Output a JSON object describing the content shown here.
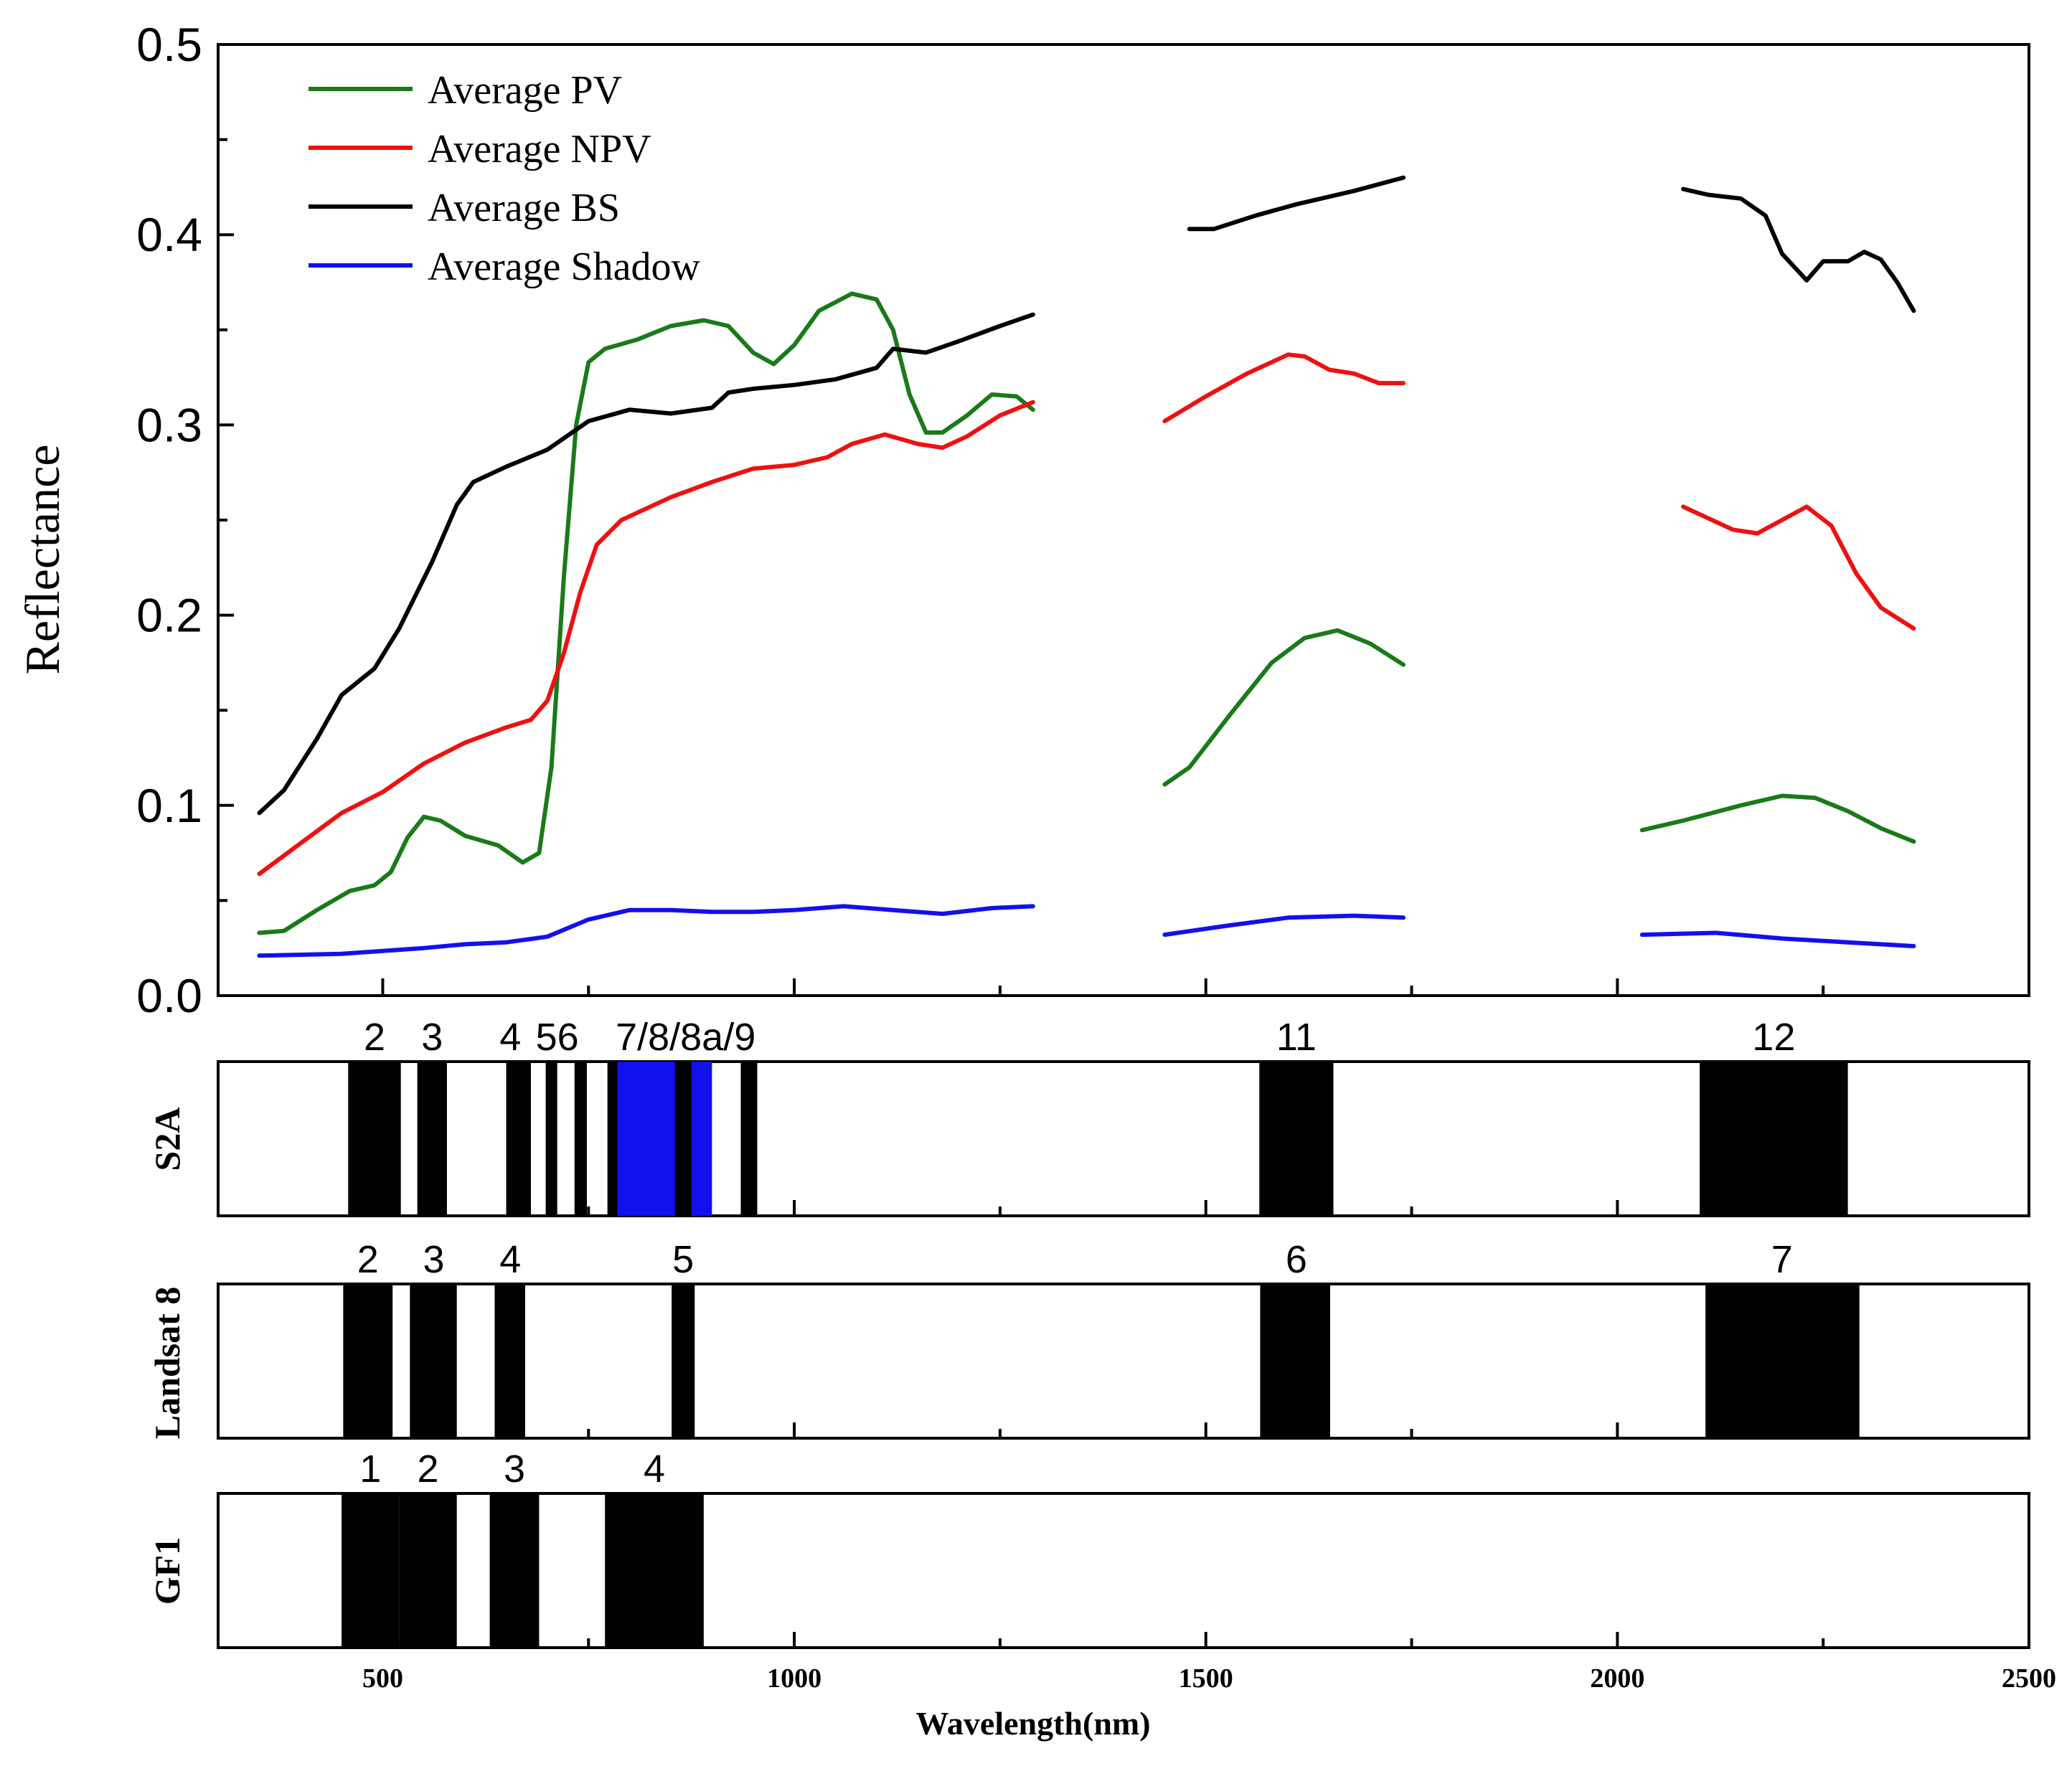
{
  "chart_data": {
    "type": "line",
    "title": "",
    "ylabel": "Reflectance",
    "xlabel": "Wavelength(nm)",
    "ylim": [
      0.0,
      0.5
    ],
    "xlim": [
      300,
      2500
    ],
    "yticks": [
      "0.0",
      "0.1",
      "0.2",
      "0.3",
      "0.4",
      "0.5"
    ],
    "xticks": [
      "500",
      "1000",
      "1500",
      "2000",
      "2500"
    ],
    "legend_position": "top-left",
    "series": [
      {
        "name": "Average PV",
        "color": "#1a7a1a",
        "segments": [
          [
            [
              350,
              0.033
            ],
            [
              380,
              0.034
            ],
            [
              420,
              0.045
            ],
            [
              460,
              0.055
            ],
            [
              490,
              0.058
            ],
            [
              510,
              0.065
            ],
            [
              530,
              0.083
            ],
            [
              550,
              0.094
            ],
            [
              570,
              0.092
            ],
            [
              600,
              0.084
            ],
            [
              640,
              0.079
            ],
            [
              670,
              0.07
            ],
            [
              690,
              0.075
            ],
            [
              705,
              0.12
            ],
            [
              720,
              0.22
            ],
            [
              735,
              0.3
            ],
            [
              750,
              0.333
            ],
            [
              770,
              0.34
            ],
            [
              810,
              0.345
            ],
            [
              850,
              0.352
            ],
            [
              890,
              0.355
            ],
            [
              920,
              0.352
            ],
            [
              950,
              0.338
            ],
            [
              975,
              0.332
            ],
            [
              1000,
              0.342
            ],
            [
              1030,
              0.36
            ],
            [
              1070,
              0.369
            ],
            [
              1100,
              0.366
            ],
            [
              1120,
              0.35
            ],
            [
              1140,
              0.316
            ],
            [
              1160,
              0.296
            ],
            [
              1180,
              0.296
            ],
            [
              1210,
              0.305
            ],
            [
              1240,
              0.316
            ],
            [
              1270,
              0.315
            ],
            [
              1290,
              0.308
            ]
          ],
          [
            [
              1450,
              0.111
            ],
            [
              1480,
              0.12
            ],
            [
              1530,
              0.148
            ],
            [
              1580,
              0.175
            ],
            [
              1620,
              0.188
            ],
            [
              1660,
              0.192
            ],
            [
              1700,
              0.185
            ],
            [
              1740,
              0.174
            ]
          ],
          [
            [
              2030,
              0.087
            ],
            [
              2080,
              0.092
            ],
            [
              2150,
              0.1
            ],
            [
              2200,
              0.105
            ],
            [
              2240,
              0.104
            ],
            [
              2280,
              0.097
            ],
            [
              2320,
              0.088
            ],
            [
              2360,
              0.081
            ]
          ]
        ]
      },
      {
        "name": "Average NPV",
        "color": "#ee1111",
        "segments": [
          [
            [
              350,
              0.064
            ],
            [
              400,
              0.08
            ],
            [
              450,
              0.096
            ],
            [
              500,
              0.107
            ],
            [
              550,
              0.122
            ],
            [
              600,
              0.133
            ],
            [
              650,
              0.141
            ],
            [
              680,
              0.145
            ],
            [
              700,
              0.155
            ],
            [
              720,
              0.18
            ],
            [
              740,
              0.212
            ],
            [
              760,
              0.237
            ],
            [
              790,
              0.25
            ],
            [
              850,
              0.262
            ],
            [
              900,
              0.27
            ],
            [
              950,
              0.277
            ],
            [
              1000,
              0.279
            ],
            [
              1040,
              0.283
            ],
            [
              1070,
              0.29
            ],
            [
              1110,
              0.295
            ],
            [
              1150,
              0.29
            ],
            [
              1180,
              0.288
            ],
            [
              1210,
              0.294
            ],
            [
              1250,
              0.305
            ],
            [
              1290,
              0.312
            ]
          ],
          [
            [
              1450,
              0.302
            ],
            [
              1500,
              0.315
            ],
            [
              1550,
              0.327
            ],
            [
              1600,
              0.337
            ],
            [
              1620,
              0.336
            ],
            [
              1650,
              0.329
            ],
            [
              1680,
              0.327
            ],
            [
              1710,
              0.322
            ],
            [
              1740,
              0.322
            ]
          ],
          [
            [
              2080,
              0.257
            ],
            [
              2110,
              0.251
            ],
            [
              2140,
              0.245
            ],
            [
              2170,
              0.243
            ],
            [
              2200,
              0.25
            ],
            [
              2230,
              0.257
            ],
            [
              2260,
              0.247
            ],
            [
              2290,
              0.222
            ],
            [
              2320,
              0.204
            ],
            [
              2360,
              0.193
            ]
          ]
        ]
      },
      {
        "name": "Average BS",
        "color": "#000000",
        "segments": [
          [
            [
              350,
              0.096
            ],
            [
              380,
              0.108
            ],
            [
              420,
              0.135
            ],
            [
              450,
              0.158
            ],
            [
              490,
              0.172
            ],
            [
              520,
              0.193
            ],
            [
              560,
              0.228
            ],
            [
              590,
              0.258
            ],
            [
              610,
              0.27
            ],
            [
              650,
              0.278
            ],
            [
              700,
              0.287
            ],
            [
              750,
              0.302
            ],
            [
              800,
              0.308
            ],
            [
              850,
              0.306
            ],
            [
              900,
              0.309
            ],
            [
              920,
              0.317
            ],
            [
              950,
              0.319
            ],
            [
              1000,
              0.321
            ],
            [
              1050,
              0.324
            ],
            [
              1100,
              0.33
            ],
            [
              1120,
              0.34
            ],
            [
              1160,
              0.338
            ],
            [
              1200,
              0.344
            ],
            [
              1250,
              0.352
            ],
            [
              1290,
              0.358
            ]
          ],
          [
            [
              1480,
              0.403
            ],
            [
              1510,
              0.403
            ],
            [
              1560,
              0.41
            ],
            [
              1610,
              0.416
            ],
            [
              1680,
              0.423
            ],
            [
              1740,
              0.43
            ]
          ],
          [
            [
              2080,
              0.424
            ],
            [
              2110,
              0.421
            ],
            [
              2150,
              0.419
            ],
            [
              2180,
              0.41
            ],
            [
              2200,
              0.39
            ],
            [
              2230,
              0.376
            ],
            [
              2250,
              0.386
            ],
            [
              2280,
              0.386
            ],
            [
              2300,
              0.391
            ],
            [
              2320,
              0.387
            ],
            [
              2340,
              0.375
            ],
            [
              2360,
              0.36
            ]
          ]
        ]
      },
      {
        "name": "Average Shadow",
        "color": "#1111ee",
        "segments": [
          [
            [
              350,
              0.021
            ],
            [
              450,
              0.022
            ],
            [
              550,
              0.025
            ],
            [
              600,
              0.027
            ],
            [
              650,
              0.028
            ],
            [
              700,
              0.031
            ],
            [
              750,
              0.04
            ],
            [
              800,
              0.045
            ],
            [
              850,
              0.045
            ],
            [
              900,
              0.044
            ],
            [
              950,
              0.044
            ],
            [
              1000,
              0.045
            ],
            [
              1060,
              0.047
            ],
            [
              1120,
              0.045
            ],
            [
              1180,
              0.043
            ],
            [
              1240,
              0.046
            ],
            [
              1290,
              0.047
            ]
          ],
          [
            [
              1450,
              0.032
            ],
            [
              1530,
              0.037
            ],
            [
              1600,
              0.041
            ],
            [
              1680,
              0.042
            ],
            [
              1740,
              0.041
            ]
          ],
          [
            [
              2030,
              0.032
            ],
            [
              2120,
              0.033
            ],
            [
              2200,
              0.03
            ],
            [
              2280,
              0.028
            ],
            [
              2360,
              0.026
            ]
          ]
        ]
      }
    ],
    "sensors": [
      {
        "name": "S2A",
        "bands": [
          {
            "min": 458,
            "max": 522,
            "color": "#000000"
          },
          {
            "min": 542,
            "max": 578,
            "color": "#000000"
          },
          {
            "min": 650,
            "max": 680,
            "color": "#000000"
          },
          {
            "min": 698,
            "max": 712,
            "color": "#000000"
          },
          {
            "min": 733,
            "max": 748,
            "color": "#000000"
          },
          {
            "min": 773,
            "max": 793,
            "color": "#000000"
          },
          {
            "min": 785,
            "max": 900,
            "color": "#1111ee"
          },
          {
            "min": 855,
            "max": 875,
            "color": "#000000"
          },
          {
            "min": 935,
            "max": 955,
            "color": "#000000"
          },
          {
            "min": 1565,
            "max": 1655,
            "color": "#000000"
          },
          {
            "min": 2100,
            "max": 2280,
            "color": "#000000"
          }
        ],
        "labels": [
          {
            "text": "2",
            "at": 490
          },
          {
            "text": "3",
            "at": 560
          },
          {
            "text": "4",
            "at": 655
          },
          {
            "text": "56",
            "at": 712
          },
          {
            "text": "7/8/8a/9",
            "at": 868
          },
          {
            "text": "11",
            "at": 1610
          },
          {
            "text": "12",
            "at": 2190
          }
        ]
      },
      {
        "name": "Landsat 8",
        "bands": [
          {
            "min": 452,
            "max": 512,
            "color": "#000000"
          },
          {
            "min": 533,
            "max": 590,
            "color": "#000000"
          },
          {
            "min": 636,
            "max": 673,
            "color": "#000000"
          },
          {
            "min": 851,
            "max": 879,
            "color": "#000000"
          },
          {
            "min": 1566,
            "max": 1651,
            "color": "#000000"
          },
          {
            "min": 2107,
            "max": 2294,
            "color": "#000000"
          }
        ],
        "labels": [
          {
            "text": "2",
            "at": 482
          },
          {
            "text": "3",
            "at": 562
          },
          {
            "text": "4",
            "at": 655
          },
          {
            "text": "5",
            "at": 865
          },
          {
            "text": "6",
            "at": 1610
          },
          {
            "text": "7",
            "at": 2200
          }
        ]
      },
      {
        "name": "GF1",
        "bands": [
          {
            "min": 450,
            "max": 520,
            "color": "#000000"
          },
          {
            "min": 520,
            "max": 590,
            "color": "#000000"
          },
          {
            "min": 630,
            "max": 690,
            "color": "#000000"
          },
          {
            "min": 770,
            "max": 890,
            "color": "#000000"
          }
        ],
        "labels": [
          {
            "text": "1",
            "at": 485
          },
          {
            "text": "2",
            "at": 555
          },
          {
            "text": "3",
            "at": 660
          },
          {
            "text": "4",
            "at": 830
          }
        ]
      }
    ]
  }
}
